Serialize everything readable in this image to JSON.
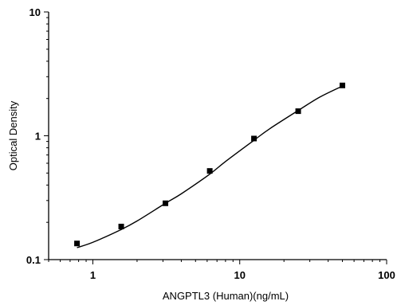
{
  "chart_data": {
    "type": "scatter",
    "title": "",
    "xlabel": "ANGPTL3 (Human)(ng/mL)",
    "ylabel": "Optical Density",
    "x_scale": "log",
    "y_scale": "log",
    "xlim": [
      0.5,
      100
    ],
    "ylim": [
      0.1,
      10
    ],
    "x_ticks": [
      1,
      10,
      100
    ],
    "x_tick_labels": [
      "1",
      "10",
      "100"
    ],
    "y_ticks": [
      0.1,
      1,
      10
    ],
    "y_tick_labels": [
      "0.1",
      "1",
      "10"
    ],
    "grid": false,
    "legend": "none",
    "series": [
      {
        "type": "scatter",
        "marker": "square",
        "x": [
          0.78,
          1.56,
          3.12,
          6.25,
          12.5,
          25,
          50
        ],
        "y": [
          0.135,
          0.185,
          0.285,
          0.52,
          0.95,
          1.58,
          2.55
        ]
      },
      {
        "type": "line",
        "style": "fitted-curve",
        "x": [
          0.78,
          1.0,
          1.56,
          2.0,
          3.12,
          4.0,
          6.25,
          8.0,
          12.5,
          16,
          25,
          35,
          50
        ],
        "y": [
          0.125,
          0.138,
          0.175,
          0.205,
          0.285,
          0.34,
          0.49,
          0.62,
          0.92,
          1.14,
          1.6,
          2.05,
          2.52
        ]
      }
    ],
    "colors": {
      "axis": "#000000",
      "marker": "#000000",
      "line": "#000000"
    }
  }
}
